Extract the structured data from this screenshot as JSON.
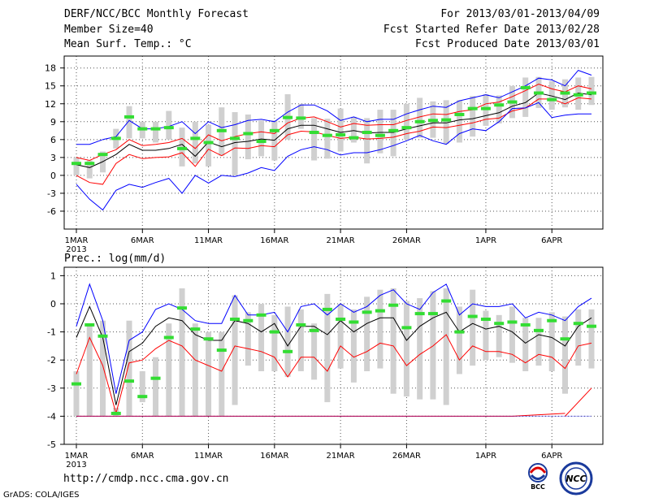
{
  "header": {
    "title": "DERF/NCC/BCC Monthly Forecast",
    "member": "Member Size=40",
    "variable": "Mean Surf. Temp.: °C",
    "period": "For 2013/03/01-2013/04/09",
    "refer": "Fcst Started Refer Date 2013/02/28",
    "produced": "Fcst Produced Date 2013/03/01"
  },
  "prec_label": "Prec.: log(mm/d)",
  "footer": {
    "url": "http://cmdp.ncc.cma.gov.cn",
    "grads": "GrADS: COLA/IGES",
    "logo_bcc": "BCC",
    "logo_ncc": "NCC"
  },
  "colors": {
    "max": "#0000ff",
    "min": "#0000ff",
    "std": "#ff0000",
    "mean": "#000000",
    "obs": "#33dd33",
    "box": "#d0d0d0",
    "grid": "#555555"
  },
  "chart_data": [
    {
      "type": "line",
      "title": "Mean Surf. Temp.: °C",
      "days": 40,
      "x_start": "2013-03-01",
      "x_ticks": [
        1,
        6,
        11,
        16,
        21,
        26,
        32,
        37
      ],
      "x_tick_labels": [
        "1MAR",
        "6MAR",
        "11MAR",
        "16MAR",
        "21MAR",
        "26MAR",
        "1APR",
        "6APR"
      ],
      "x_year_label": "2013",
      "ylim": [
        -9,
        20
      ],
      "y_ticks": [
        -6,
        -3,
        0,
        3,
        6,
        9,
        12,
        15,
        18
      ],
      "series": [
        {
          "name": "max",
          "values": [
            5.2,
            5.2,
            6,
            6.5,
            9.2,
            7.8,
            7.8,
            8.2,
            9,
            7,
            9,
            8,
            8.5,
            9.2,
            9.4,
            9,
            10.6,
            11.8,
            11.8,
            10.8,
            9.2,
            9.8,
            9,
            9.4,
            9.4,
            10.3,
            11,
            11.6,
            11.4,
            12.5,
            13,
            13.5,
            13,
            14,
            15,
            16.3,
            16,
            15,
            17.6,
            16.8
          ]
        },
        {
          "name": "std_high",
          "values": [
            3,
            2.5,
            3.5,
            4.3,
            6,
            5,
            5.2,
            5.5,
            6.2,
            4.5,
            6.8,
            5.8,
            6.5,
            7,
            7.3,
            7,
            8.8,
            9.6,
            9.8,
            9,
            8.1,
            8.7,
            8.4,
            8.5,
            8.5,
            9.2,
            9.8,
            10.3,
            10.2,
            10.7,
            11,
            12,
            12.3,
            13.2,
            14.2,
            15.3,
            14.5,
            14,
            15,
            14.5
          ]
        },
        {
          "name": "mean",
          "values": [
            1.8,
            1.3,
            2.3,
            3.5,
            5.2,
            4.2,
            4.2,
            4.5,
            5.2,
            3.2,
            5.6,
            4.8,
            5.5,
            5.7,
            6.1,
            5.9,
            7.8,
            8.4,
            8.4,
            7.8,
            7.2,
            7.5,
            7.1,
            7.2,
            7.2,
            7.8,
            8.3,
            8.8,
            8.8,
            9.3,
            9.5,
            10,
            10.5,
            11.6,
            12.2,
            13.8,
            13.3,
            12.7,
            13.8,
            13.5
          ]
        },
        {
          "name": "std_low",
          "values": [
            0,
            -1.2,
            -1.5,
            2,
            3.5,
            2.8,
            3,
            3.1,
            3.8,
            1.5,
            4.4,
            3.3,
            4.6,
            4.5,
            5,
            4.8,
            6.8,
            7.4,
            7.3,
            6.7,
            6.2,
            6.4,
            6.1,
            6.2,
            6.4,
            7,
            7.4,
            8.1,
            8,
            8.4,
            8.8,
            9.4,
            9.6,
            10.8,
            11.3,
            12.8,
            12.8,
            12,
            13,
            12.8
          ]
        },
        {
          "name": "min",
          "values": [
            -1.5,
            -4,
            -5.8,
            -2.5,
            -1.5,
            -2,
            -1.2,
            -0.5,
            -3,
            0,
            -1.3,
            0,
            -0.2,
            0.4,
            1.3,
            0.8,
            3.2,
            4.3,
            4.8,
            4.3,
            3.4,
            3.8,
            3.8,
            4.3,
            5,
            5.8,
            6.7,
            5.8,
            5.2,
            7,
            7.8,
            7.5,
            9,
            11.2,
            11.3,
            12.2,
            9.7,
            10.1,
            10.3,
            10.3
          ]
        },
        {
          "name": "obs",
          "values": [
            2,
            2,
            3.5,
            6.2,
            9.8,
            7.8,
            7.8,
            8,
            4.5,
            6.2,
            5.5,
            7.5,
            6.2,
            7,
            5.7,
            7.5,
            9.7,
            9.6,
            7.2,
            6.7,
            6.8,
            6.3,
            7.2,
            6.7,
            7.5,
            8,
            9,
            9.2,
            9.3,
            10.2,
            11.2,
            11.2,
            11.8,
            12.3,
            14.7,
            13.8,
            12.7,
            13.8,
            13.5,
            13.8
          ]
        },
        {
          "name": "box_high",
          "values": [
            3,
            2.5,
            4,
            7.8,
            11.6,
            9,
            9,
            10.8,
            8,
            9,
            8.5,
            11.4,
            10.6,
            10.2,
            9.2,
            9.2,
            13.6,
            12,
            9.6,
            9.5,
            11.2,
            9.8,
            9.6,
            11,
            11,
            12,
            13,
            12.4,
            12.6,
            12.6,
            13.3,
            13.6,
            13.4,
            15,
            16.4,
            16.5,
            15.8,
            16.1,
            16.4,
            16.5
          ]
        },
        {
          "name": "box_low",
          "values": [
            0,
            -0.5,
            0.5,
            4.5,
            6.2,
            6.2,
            5.5,
            6,
            1.5,
            2,
            1.5,
            3.3,
            0,
            2.7,
            3.2,
            2.5,
            6,
            7.8,
            2.5,
            2.8,
            4,
            5.5,
            2,
            3.7,
            3.2,
            6,
            6.3,
            6.3,
            5.3,
            5.5,
            6.5,
            8.3,
            8.7,
            9.6,
            9.8,
            11.3,
            11,
            11.4,
            11,
            11.8
          ]
        }
      ]
    },
    {
      "type": "line",
      "title": "Prec.: log(mm/d)",
      "days": 40,
      "x_start": "2013-03-01",
      "x_ticks": [
        1,
        6,
        11,
        16,
        21,
        26,
        32,
        37
      ],
      "x_tick_labels": [
        "1MAR",
        "6MAR",
        "11MAR",
        "16MAR",
        "21MAR",
        "26MAR",
        "1APR",
        "6APR"
      ],
      "x_year_label": "2013",
      "ylim": [
        -5,
        1.3
      ],
      "y_ticks": [
        -5,
        -4,
        -3,
        -2,
        -1,
        0,
        1
      ],
      "series": [
        {
          "name": "max",
          "values": [
            -0.8,
            0.7,
            -0.6,
            -3.2,
            -1.3,
            -1.0,
            -0.2,
            0,
            -0.2,
            -0.6,
            -0.7,
            -0.7,
            0.3,
            -0.4,
            -0.4,
            -0.3,
            -1.0,
            -0.1,
            0,
            -0.4,
            0,
            -0.3,
            -0.1,
            0.3,
            0.5,
            0,
            -0.2,
            0.4,
            0.7,
            -0.4,
            0,
            -0.1,
            -0.1,
            0,
            -0.5,
            -0.3,
            -0.4,
            -0.6,
            -0.1,
            0.2
          ]
        },
        {
          "name": "mean",
          "values": [
            -1.2,
            -0.1,
            -1.2,
            -3.6,
            -1.7,
            -1.4,
            -0.8,
            -0.5,
            -0.6,
            -1.1,
            -1.3,
            -1.3,
            -0.6,
            -0.7,
            -1.0,
            -0.7,
            -1.5,
            -0.8,
            -0.8,
            -1.1,
            -0.6,
            -1.0,
            -0.7,
            -0.5,
            -0.5,
            -1.3,
            -0.8,
            -0.5,
            -0.3,
            -1.0,
            -0.7,
            -0.9,
            -0.8,
            -1.0,
            -1.4,
            -1.1,
            -1.2,
            -1.5,
            -0.8,
            -0.5
          ]
        },
        {
          "name": "std_low",
          "values": [
            -2.5,
            -1.2,
            -2.2,
            -3.9,
            -2.1,
            -2.0,
            -1.6,
            -1.3,
            -1.5,
            -2.0,
            -2.2,
            -2.4,
            -1.5,
            -1.6,
            -1.7,
            -1.9,
            -2.6,
            -1.9,
            -1.9,
            -2.4,
            -1.5,
            -1.9,
            -1.7,
            -1.4,
            -1.5,
            -2.2,
            -1.8,
            -1.5,
            -1.1,
            -2.0,
            -1.5,
            -1.7,
            -1.7,
            -1.8,
            -2.1,
            -1.8,
            -1.9,
            -2.3,
            -1.5,
            -1.4
          ]
        },
        {
          "name": "obs",
          "values": [
            -2.85,
            -0.75,
            -1.15,
            -3.9,
            -2.75,
            -3.3,
            -2.65,
            -1.2,
            -0.15,
            -0.9,
            -1.25,
            -1.65,
            -0.55,
            -0.6,
            -0.4,
            -1.0,
            -1.7,
            -0.75,
            -0.95,
            -0.2,
            -0.55,
            -0.65,
            -0.3,
            -0.25,
            -0.05,
            -0.85,
            -0.35,
            -0.35,
            0.1,
            -1.0,
            -0.45,
            -0.55,
            -0.7,
            -0.65,
            -0.75,
            -0.95,
            -0.6,
            -1.25,
            -0.7,
            -0.8
          ]
        },
        {
          "name": "box_high",
          "values": [
            -2.4,
            -0.7,
            -0.6,
            -3.7,
            -0.6,
            -2.4,
            -1.9,
            -0.7,
            0.55,
            -0.7,
            -1.0,
            -1.0,
            0.3,
            -0.3,
            0,
            -0.4,
            -0.1,
            -0.2,
            -0.7,
            0.35,
            0,
            -0.2,
            0.25,
            0.5,
            0.55,
            0.1,
            0.2,
            0.45,
            0.55,
            -0.1,
            0.5,
            -0.25,
            -0.4,
            -0.1,
            -0.5,
            -0.5,
            -0.3,
            -0.45,
            -0.2,
            -0.2
          ]
        },
        {
          "name": "box_low",
          "values": [
            -4,
            -4,
            -4,
            -4,
            -4,
            -3.5,
            -4,
            -4,
            -4,
            -4,
            -4,
            -4,
            -3.6,
            -2.2,
            -2.4,
            -2.4,
            -2.6,
            -2.4,
            -2.7,
            -3.5,
            -2.3,
            -2.8,
            -2.4,
            -2.3,
            -3.2,
            -3.3,
            -3.4,
            -3.4,
            -3.6,
            -2.5,
            -2.2,
            -2.0,
            -1.9,
            -2.1,
            -2.4,
            -2.2,
            -2.4,
            -3.2,
            -2.2,
            -2.3
          ]
        },
        {
          "name": "min_segments",
          "segments": [
            {
              "x_from": 1,
              "x_to": 34,
              "value": -4
            },
            {
              "x_from": 34,
              "x_to": 38,
              "value": -3.9
            },
            {
              "x_from": 38,
              "x_to": 40,
              "value": -3.0
            }
          ]
        }
      ]
    }
  ]
}
